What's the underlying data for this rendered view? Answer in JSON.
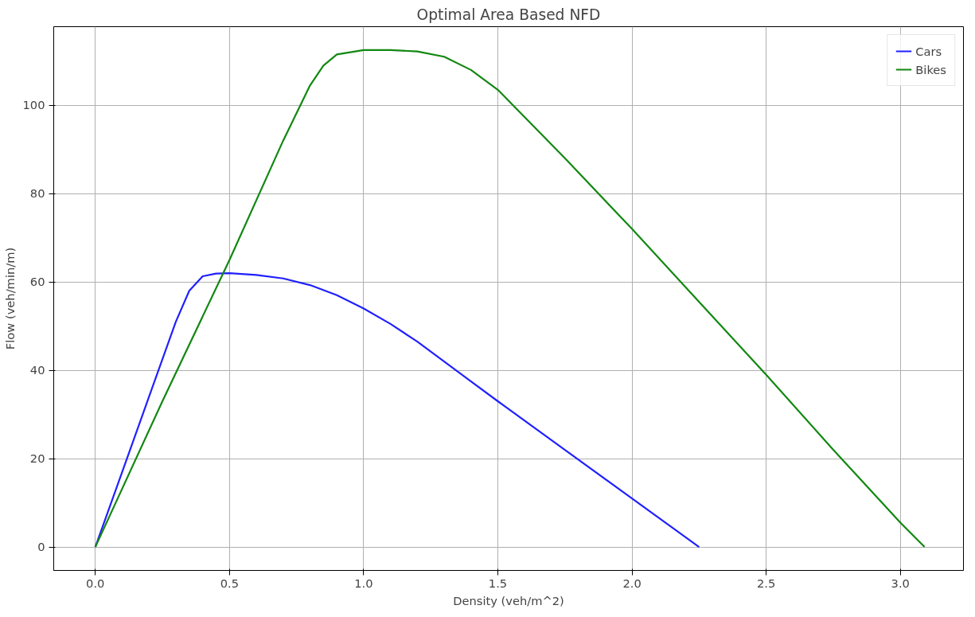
{
  "chart_data": {
    "type": "line",
    "title": "Optimal Area Based NFD",
    "xlabel": "Density (veh/m^2)",
    "ylabel": "Flow (veh/min/m)",
    "xlim": [
      -0.155,
      3.235
    ],
    "ylim": [
      -5.3,
      117.8
    ],
    "xticks": [
      {
        "value": 0,
        "label": "0.0"
      },
      {
        "value": 0.5,
        "label": "0.5"
      },
      {
        "value": 1,
        "label": "1.0"
      },
      {
        "value": 1.5,
        "label": "1.5"
      },
      {
        "value": 2,
        "label": "2.0"
      },
      {
        "value": 2.5,
        "label": "2.5"
      },
      {
        "value": 3,
        "label": "3.0"
      }
    ],
    "yticks": [
      0,
      20,
      40,
      60,
      80,
      100
    ],
    "grid": true,
    "legend": "top right",
    "line_style": "solid",
    "series": [
      {
        "name": "Cars",
        "color": "#2020ff",
        "x": [
          0,
          0.1,
          0.2,
          0.3,
          0.35,
          0.4,
          0.45,
          0.5,
          0.6,
          0.7,
          0.8,
          0.9,
          1.0,
          1.1,
          1.2,
          1.3,
          1.4,
          1.5,
          1.75,
          2.0,
          2.25
        ],
        "values": [
          0,
          17,
          34,
          51,
          58,
          61.3,
          61.9,
          62,
          61.6,
          60.8,
          59.3,
          57,
          54,
          50.5,
          46.5,
          42,
          37.5,
          33,
          22,
          11,
          0
        ]
      },
      {
        "name": "Bikes",
        "color": "#118811",
        "x": [
          0,
          0.25,
          0.5,
          0.7,
          0.8,
          0.85,
          0.9,
          1.0,
          1.1,
          1.2,
          1.3,
          1.4,
          1.5,
          1.75,
          2.0,
          2.25,
          2.5,
          2.75,
          3.0,
          3.09
        ],
        "values": [
          0,
          33,
          65,
          92,
          104.5,
          109,
          111.5,
          112.5,
          112.5,
          112.2,
          111,
          108,
          103.5,
          88,
          72,
          55.5,
          39,
          22,
          5.5,
          0
        ]
      }
    ]
  }
}
